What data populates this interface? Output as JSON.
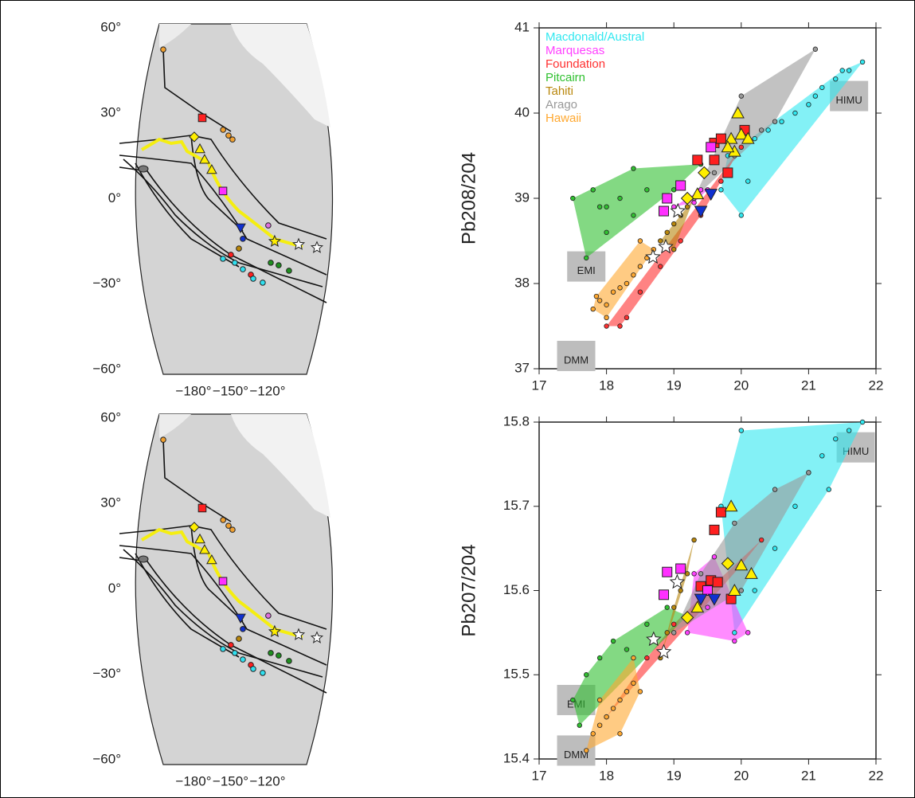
{
  "chart_data": [
    {
      "type": "map",
      "xlim": [
        -230.3,
        -69
      ],
      "ylim": [
        -61.7,
        61.4
      ],
      "xticks": [
        {
          "value": -180,
          "label": "−180°"
        },
        {
          "value": -150,
          "label": "−150°"
        },
        {
          "value": -120,
          "label": "−120°"
        }
      ],
      "yticks": [
        {
          "value": 60,
          "label": "60°"
        },
        {
          "value": 30,
          "label": "30°"
        },
        {
          "value": 0,
          "label": "0°"
        },
        {
          "value": -30,
          "label": "−30°"
        },
        {
          "value": -60,
          "label": "−60°"
        }
      ],
      "series": [
        {
          "color": "#f0a030",
          "marker": "circle",
          "x": [
            -204.5,
            -156,
            -151.6,
            -148.4
          ],
          "y": [
            52.4,
            24.2,
            22.2,
            20.8
          ]
        },
        {
          "color": "#ff2020",
          "marker": "square",
          "x": [
            -172.9
          ],
          "y": [
            28.4
          ]
        },
        {
          "color": "#ff30ff",
          "marker": "square",
          "x": [
            -156.1
          ],
          "y": [
            2.7
          ]
        },
        {
          "color": "#ffee00",
          "marker": "diamond",
          "x": [
            -179.4
          ],
          "y": [
            21.7
          ]
        },
        {
          "color": "#ffee00",
          "marker": "triangle",
          "x": [
            -174.8,
            -171,
            -165.2
          ],
          "y": [
            17.5,
            13.8,
            10.2
          ]
        },
        {
          "color": "#1030d0",
          "marker": "tri-down",
          "x": [
            -141.9
          ],
          "y": [
            -10.2
          ]
        },
        {
          "color": "#e070e0",
          "marker": "circle",
          "x": [
            -119.4
          ],
          "y": [
            -9.4
          ]
        },
        {
          "color": "#ffee00",
          "marker": "star",
          "x": [
            -114.2
          ],
          "y": [
            -15
          ]
        },
        {
          "color": "#ffffff",
          "marker": "star",
          "x": [
            -94.8,
            -80
          ],
          "y": [
            -16.1,
            -17.2
          ]
        },
        {
          "color": "#b8860b",
          "marker": "circle",
          "x": [
            -143.2
          ],
          "y": [
            -17.5
          ]
        },
        {
          "color": "#ff2020",
          "marker": "circle",
          "x": [
            -149.7,
            -133.5
          ],
          "y": [
            -19.7,
            -26.7
          ]
        },
        {
          "color": "#30e0f0",
          "marker": "circle",
          "x": [
            -156.1,
            -146.5,
            -140,
            -131.6,
            -123.9
          ],
          "y": [
            -21.1,
            -22.5,
            -24.8,
            -28.1,
            -29.5
          ]
        },
        {
          "color": "#209020",
          "marker": "circle",
          "x": [
            -117.4,
            -111,
            -102.6
          ],
          "y": [
            -22.5,
            -23.4,
            -25.3
          ]
        },
        {
          "color": "#1030d0",
          "marker": "circle",
          "x": [
            -140
          ],
          "y": [
            -14.1
          ]
        }
      ]
    },
    {
      "type": "map",
      "xlim": [
        -230.3,
        -69
      ],
      "ylim": [
        -61.7,
        61.4
      ],
      "xticks": [
        {
          "value": -180,
          "label": "−180°"
        },
        {
          "value": -150,
          "label": "−150°"
        },
        {
          "value": -120,
          "label": "−120°"
        }
      ],
      "yticks": [
        {
          "value": 60,
          "label": "60°"
        },
        {
          "value": 30,
          "label": "30°"
        },
        {
          "value": 0,
          "label": "0°"
        },
        {
          "value": -30,
          "label": "−30°"
        },
        {
          "value": -60,
          "label": "−60°"
        }
      ],
      "series": [
        {
          "color": "#f0a030",
          "marker": "circle",
          "x": [
            -204.5,
            -156,
            -151.6,
            -148.4
          ],
          "y": [
            52.4,
            24.2,
            22.2,
            20.8
          ]
        },
        {
          "color": "#ff2020",
          "marker": "square",
          "x": [
            -172.9
          ],
          "y": [
            28.4
          ]
        },
        {
          "color": "#ff30ff",
          "marker": "square",
          "x": [
            -156.1
          ],
          "y": [
            2.7
          ]
        },
        {
          "color": "#ffee00",
          "marker": "diamond",
          "x": [
            -179.4
          ],
          "y": [
            21.7
          ]
        },
        {
          "color": "#ffee00",
          "marker": "triangle",
          "x": [
            -174.8,
            -171,
            -165.2
          ],
          "y": [
            17.5,
            13.8,
            10.2
          ]
        },
        {
          "color": "#1030d0",
          "marker": "tri-down",
          "x": [
            -141.9
          ],
          "y": [
            -10.2
          ]
        },
        {
          "color": "#e070e0",
          "marker": "circle",
          "x": [
            -119.4
          ],
          "y": [
            -9.4
          ]
        },
        {
          "color": "#ffee00",
          "marker": "star",
          "x": [
            -114.2
          ],
          "y": [
            -15
          ]
        },
        {
          "color": "#ffffff",
          "marker": "star",
          "x": [
            -94.8,
            -80
          ],
          "y": [
            -16.1,
            -17.2
          ]
        },
        {
          "color": "#b8860b",
          "marker": "circle",
          "x": [
            -143.2
          ],
          "y": [
            -17.5
          ]
        },
        {
          "color": "#ff2020",
          "marker": "circle",
          "x": [
            -149.7,
            -133.5
          ],
          "y": [
            -19.7,
            -26.7
          ]
        },
        {
          "color": "#30e0f0",
          "marker": "circle",
          "x": [
            -156.1,
            -146.5,
            -140,
            -131.6,
            -123.9
          ],
          "y": [
            -21.1,
            -22.5,
            -24.8,
            -28.1,
            -29.5
          ]
        },
        {
          "color": "#209020",
          "marker": "circle",
          "x": [
            -117.4,
            -111,
            -102.6
          ],
          "y": [
            -22.5,
            -23.4,
            -25.3
          ]
        },
        {
          "color": "#1030d0",
          "marker": "circle",
          "x": [
            -140
          ],
          "y": [
            -14.1
          ]
        }
      ]
    },
    {
      "type": "scatter",
      "ylabel": "Pb208/204",
      "legend": "upper left",
      "xlim": [
        17,
        22
      ],
      "ylim": [
        37,
        41
      ],
      "xticks": [
        17,
        18,
        19,
        20,
        21,
        22
      ],
      "yticks": [
        37,
        38,
        39,
        40,
        41
      ],
      "series": [
        {
          "name": "Macdonald/Austral",
          "color": "#30e8f0",
          "x": [
            19.8,
            20.0,
            20.2,
            20.4,
            20.6,
            20.8,
            21.0,
            21.2,
            21.4,
            21.6,
            21.8,
            20.1,
            19.7,
            21.1,
            21.5
          ],
          "y": [
            39.5,
            38.8,
            39.7,
            39.8,
            39.9,
            40.0,
            40.1,
            40.3,
            40.4,
            40.5,
            40.6,
            39.2,
            39.1,
            40.2,
            40.5
          ]
        },
        {
          "name": "Marquesas",
          "color": "#ff40ff",
          "x": [
            19.0,
            19.2,
            19.4,
            19.3,
            19.5
          ],
          "y": [
            38.9,
            39.0,
            39.1,
            38.95,
            39.1
          ]
        },
        {
          "name": "Foundation",
          "color": "#ff3030",
          "x": [
            18.0,
            18.2,
            18.5,
            18.8,
            19.1,
            19.4,
            19.7,
            20.0,
            18.3
          ],
          "y": [
            37.5,
            37.5,
            37.9,
            38.2,
            38.5,
            38.8,
            39.2,
            39.6,
            37.6
          ]
        },
        {
          "name": "Pitcairn",
          "color": "#30c030",
          "x": [
            17.5,
            17.7,
            17.8,
            18.0,
            18.2,
            18.4,
            18.6,
            18.4,
            19.0,
            19.4,
            18.0,
            17.9
          ],
          "y": [
            39.0,
            38.3,
            39.1,
            38.9,
            39.0,
            38.8,
            39.1,
            39.35,
            39.1,
            39.4,
            38.6,
            38.9
          ]
        },
        {
          "name": "Tahiti",
          "color": "#b8860b",
          "x": [
            18.8,
            18.9,
            19.0,
            19.1,
            19.2,
            19.0,
            19.3
          ],
          "y": [
            38.5,
            38.6,
            38.7,
            38.8,
            38.9,
            38.4,
            39.0
          ]
        },
        {
          "name": "Arago",
          "color": "#999999",
          "x": [
            19.3,
            19.6,
            20.0,
            20.5,
            21.1,
            19.9,
            20.3
          ],
          "y": [
            39.0,
            39.3,
            40.2,
            39.9,
            40.75,
            39.5,
            39.8
          ]
        },
        {
          "name": "Hawaii",
          "color": "#ffa830",
          "x": [
            17.8,
            17.9,
            18.0,
            18.1,
            18.2,
            18.3,
            18.4,
            18.5,
            18.6,
            18.7,
            18.5,
            18.0,
            17.85
          ],
          "y": [
            37.7,
            37.8,
            37.75,
            37.9,
            37.95,
            38.0,
            38.1,
            38.2,
            38.3,
            38.4,
            38.5,
            37.6,
            37.85
          ]
        }
      ],
      "highlights": [
        {
          "color": "#ff2020",
          "marker": "square",
          "x": [
            19.35,
            19.6,
            19.7,
            20.05,
            19.8,
            19.6
          ],
          "y": [
            39.45,
            39.65,
            39.7,
            39.8,
            39.3,
            39.45
          ]
        },
        {
          "color": "#ff30ff",
          "marker": "square",
          "x": [
            18.85,
            18.9,
            19.1,
            19.55
          ],
          "y": [
            38.85,
            39.0,
            39.15,
            39.6
          ]
        },
        {
          "color": "#ffee00",
          "marker": "triangle",
          "x": [
            19.95,
            19.85,
            20.0,
            20.1,
            19.9,
            19.8,
            19.35
          ],
          "y": [
            40.0,
            39.7,
            39.75,
            39.7,
            39.55,
            39.6,
            39.05
          ]
        },
        {
          "color": "#ffee00",
          "marker": "diamond",
          "x": [
            19.45,
            19.2
          ],
          "y": [
            39.3,
            39.0
          ]
        },
        {
          "color": "#1030d0",
          "marker": "tri-down",
          "x": [
            19.4,
            19.55
          ],
          "y": [
            38.85,
            39.05
          ]
        },
        {
          "color": "#ffffff",
          "marker": "star",
          "x": [
            18.69,
            18.88,
            19.06
          ],
          "y": [
            38.31,
            38.43,
            38.85
          ]
        }
      ],
      "end_members": [
        {
          "label": "EMI",
          "x": 17.7,
          "y": 38.2
        },
        {
          "label": "DMM",
          "x": 17.55,
          "y": 37.15
        },
        {
          "label": "HIMU",
          "x": 21.6,
          "y": 40.2
        }
      ]
    },
    {
      "type": "scatter",
      "ylabel": "Pb207/204",
      "xlim": [
        17,
        22
      ],
      "ylim": [
        15.4,
        15.8
      ],
      "xticks": [
        17,
        18,
        19,
        20,
        21,
        22
      ],
      "yticks": [
        15.4,
        15.5,
        15.6,
        15.7,
        15.8
      ],
      "series": [
        {
          "color": "#30e8f0",
          "x": [
            19.7,
            20.0,
            20.5,
            20.8,
            21.0,
            21.2,
            21.4,
            21.6,
            21.8,
            20.2,
            19.9,
            21.3
          ],
          "y": [
            15.7,
            15.79,
            15.65,
            15.7,
            15.74,
            15.76,
            15.78,
            15.79,
            15.8,
            15.6,
            15.55,
            15.72
          ]
        },
        {
          "color": "#ff40ff",
          "x": [
            19.2,
            19.5,
            19.9,
            20.1,
            19.6,
            19.3
          ],
          "y": [
            15.55,
            15.58,
            15.54,
            15.55,
            15.64,
            15.62
          ]
        },
        {
          "color": "#ff3030",
          "x": [
            18.0,
            18.3,
            18.6,
            19.0,
            19.5,
            20.0,
            20.3
          ],
          "y": [
            15.45,
            15.48,
            15.52,
            15.56,
            15.6,
            15.63,
            15.66
          ]
        },
        {
          "color": "#30c030",
          "x": [
            17.5,
            17.7,
            17.9,
            18.1,
            18.3,
            18.6,
            18.9,
            19.2,
            17.6
          ],
          "y": [
            15.47,
            15.5,
            15.52,
            15.54,
            15.53,
            15.56,
            15.58,
            15.57,
            15.44
          ]
        },
        {
          "color": "#b8860b",
          "x": [
            18.8,
            18.9,
            19.0,
            19.1,
            19.2,
            19.3
          ],
          "y": [
            15.52,
            15.55,
            15.58,
            15.6,
            15.62,
            15.66
          ]
        },
        {
          "color": "#999999",
          "x": [
            19.0,
            19.4,
            19.9,
            20.5,
            21.0,
            20.0
          ],
          "y": [
            15.55,
            15.62,
            15.68,
            15.72,
            15.74,
            15.6
          ]
        },
        {
          "color": "#ffa830",
          "x": [
            17.7,
            17.8,
            17.9,
            18.0,
            18.1,
            18.2,
            18.3,
            18.4,
            18.5,
            18.2,
            17.9,
            18.4
          ],
          "y": [
            15.41,
            15.43,
            15.44,
            15.45,
            15.46,
            15.47,
            15.48,
            15.49,
            15.48,
            15.43,
            15.47,
            15.52
          ]
        }
      ],
      "highlights": [
        {
          "color": "#ff2020",
          "marker": "square",
          "x": [
            19.4,
            19.6,
            19.7,
            19.55,
            19.65,
            19.85
          ],
          "y": [
            15.605,
            15.672,
            15.693,
            15.612,
            15.61,
            15.59
          ]
        },
        {
          "color": "#ff30ff",
          "marker": "square",
          "x": [
            18.85,
            18.9,
            19.1,
            19.5
          ],
          "y": [
            15.595,
            15.622,
            15.626,
            15.6
          ]
        },
        {
          "color": "#ffee00",
          "marker": "triangle",
          "x": [
            19.85,
            20.0,
            20.15,
            19.9,
            19.35
          ],
          "y": [
            15.7,
            15.63,
            15.62,
            15.6,
            15.58
          ]
        },
        {
          "color": "#ffee00",
          "marker": "diamond",
          "x": [
            19.2,
            19.8
          ],
          "y": [
            15.568,
            15.632
          ]
        },
        {
          "color": "#1030d0",
          "marker": "tri-down",
          "x": [
            19.4,
            19.6
          ],
          "y": [
            15.59,
            15.59
          ]
        },
        {
          "color": "#ffffff",
          "marker": "star",
          "x": [
            18.7,
            18.85,
            19.05
          ],
          "y": [
            15.542,
            15.527,
            15.61
          ]
        }
      ],
      "end_members": [
        {
          "label": "EMI",
          "x": 17.55,
          "y": 15.47
        },
        {
          "label": "DMM",
          "x": 17.55,
          "y": 15.41
        },
        {
          "label": "HIMU",
          "x": 21.7,
          "y": 15.77
        }
      ]
    }
  ]
}
